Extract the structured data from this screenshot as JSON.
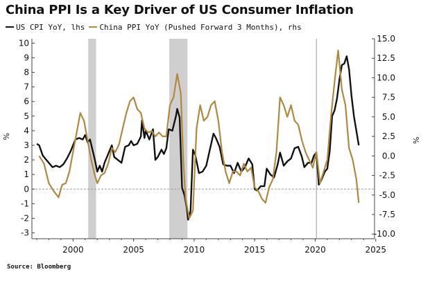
{
  "title": "China PPI Is a Key Driver of US Consumer Inflation",
  "source": "Source: Bloomberg",
  "chart_data": {
    "type": "line",
    "title": "China PPI Is a Key Driver of US Consumer Inflation",
    "x_range": [
      1996.6,
      2024.9
    ],
    "xticks": [
      2000,
      2005,
      2010,
      2015,
      2020,
      2025
    ],
    "left_axis": {
      "unit": "%",
      "ylim": [
        -3.4,
        10.3
      ],
      "ticks": [
        -3,
        -2,
        -1,
        0,
        1,
        2,
        3,
        4,
        5,
        6,
        7,
        8,
        9,
        10
      ]
    },
    "right_axis": {
      "unit": "%",
      "ylim": [
        -10.6,
        15.0
      ],
      "ticks": [
        -10.0,
        -7.5,
        -5.0,
        -2.5,
        0.0,
        2.5,
        5.0,
        7.5,
        10.0,
        12.5,
        15.0
      ]
    },
    "zero_line": 0,
    "shaded_periods": [
      [
        2001.25,
        2001.9
      ],
      [
        2007.95,
        2009.45
      ]
    ],
    "vertical_line": 2020.1,
    "legend_position": "top-left",
    "grid": false,
    "series": [
      {
        "name": "US CPI YoY, lhs",
        "axis": "left",
        "color": "#111111",
        "x": [
          1997.0,
          1997.2,
          1997.5,
          1997.8,
          1998.0,
          1998.3,
          1998.6,
          1998.9,
          1999.2,
          1999.5,
          1999.8,
          2000.0,
          2000.2,
          2000.5,
          2000.8,
          2001.0,
          2001.2,
          2001.4,
          2001.6,
          2001.8,
          2002.0,
          2002.2,
          2002.4,
          2002.6,
          2002.8,
          2003.0,
          2003.2,
          2003.4,
          2003.7,
          2004.0,
          2004.3,
          2004.6,
          2004.8,
          2005.0,
          2005.3,
          2005.6,
          2005.7,
          2005.9,
          2006.0,
          2006.3,
          2006.6,
          2006.8,
          2007.0,
          2007.3,
          2007.5,
          2007.7,
          2007.9,
          2008.2,
          2008.5,
          2008.6,
          2008.8,
          2009.0,
          2009.2,
          2009.4,
          2009.5,
          2009.7,
          2009.9,
          2010.1,
          2010.4,
          2010.7,
          2011.0,
          2011.3,
          2011.6,
          2011.8,
          2012.1,
          2012.4,
          2012.7,
          2013.0,
          2013.3,
          2013.6,
          2013.9,
          2014.2,
          2014.5,
          2014.8,
          2015.0,
          2015.2,
          2015.5,
          2015.8,
          2016.0,
          2016.3,
          2016.6,
          2016.9,
          2017.1,
          2017.4,
          2017.7,
          2018.0,
          2018.3,
          2018.6,
          2018.9,
          2019.1,
          2019.4,
          2019.7,
          2019.9,
          2020.1,
          2020.3,
          2020.5,
          2020.8,
          2021.0,
          2021.2,
          2021.4,
          2021.6,
          2021.8,
          2022.0,
          2022.2,
          2022.4,
          2022.6,
          2022.8,
          2023.0,
          2023.2,
          2023.4,
          2023.6
        ],
        "y": [
          3.1,
          3.0,
          2.3,
          2.0,
          1.8,
          1.5,
          1.6,
          1.5,
          1.7,
          2.1,
          2.6,
          3.0,
          3.4,
          3.5,
          3.4,
          3.7,
          3.2,
          3.4,
          2.7,
          2.0,
          1.2,
          1.6,
          1.2,
          1.8,
          2.2,
          2.6,
          3.0,
          2.2,
          2.0,
          1.8,
          2.9,
          3.0,
          3.3,
          3.0,
          3.1,
          3.6,
          4.7,
          3.5,
          4.0,
          3.4,
          4.1,
          2.0,
          2.2,
          2.7,
          2.4,
          2.8,
          4.1,
          4.0,
          5.0,
          5.5,
          4.9,
          0.1,
          -0.4,
          -1.3,
          -2.1,
          -1.5,
          2.7,
          2.3,
          1.1,
          1.2,
          1.6,
          2.7,
          3.8,
          3.5,
          2.9,
          1.7,
          1.6,
          1.6,
          1.1,
          1.8,
          1.2,
          1.5,
          2.1,
          1.7,
          0.0,
          -0.1,
          0.2,
          0.2,
          1.4,
          1.0,
          0.8,
          1.7,
          2.5,
          1.6,
          1.9,
          2.1,
          2.8,
          2.9,
          2.2,
          1.5,
          1.8,
          1.8,
          2.3,
          2.5,
          0.3,
          0.6,
          1.2,
          1.4,
          2.6,
          5.0,
          5.4,
          6.2,
          7.5,
          8.5,
          8.6,
          9.1,
          8.2,
          6.4,
          5.0,
          4.0,
          3.0
        ]
      },
      {
        "name": "China PPI YoY (Pushed Forward 3 Months), rhs",
        "axis": "right",
        "color": "#b08840",
        "x": [
          1997.2,
          1997.6,
          1998.0,
          1998.4,
          1998.8,
          1999.1,
          1999.4,
          1999.7,
          2000.0,
          2000.3,
          2000.6,
          2000.9,
          2001.2,
          2001.5,
          2001.8,
          2002.0,
          2002.3,
          2002.6,
          2002.9,
          2003.2,
          2003.5,
          2003.8,
          2004.1,
          2004.4,
          2004.7,
          2005.0,
          2005.3,
          2005.6,
          2005.9,
          2006.2,
          2006.5,
          2006.8,
          2007.1,
          2007.4,
          2007.7,
          2008.0,
          2008.3,
          2008.6,
          2008.9,
          2009.1,
          2009.3,
          2009.6,
          2009.9,
          2010.2,
          2010.5,
          2010.8,
          2011.1,
          2011.4,
          2011.7,
          2012.0,
          2012.3,
          2012.6,
          2012.9,
          2013.2,
          2013.5,
          2013.8,
          2014.1,
          2014.4,
          2014.7,
          2015.0,
          2015.3,
          2015.6,
          2015.9,
          2016.2,
          2016.5,
          2016.8,
          2017.1,
          2017.4,
          2017.7,
          2018.0,
          2018.3,
          2018.6,
          2018.9,
          2019.2,
          2019.5,
          2019.8,
          2020.1,
          2020.4,
          2020.7,
          2021.0,
          2021.3,
          2021.6,
          2021.9,
          2022.2,
          2022.5,
          2022.8,
          2023.1,
          2023.4,
          2023.6
        ],
        "y": [
          0.0,
          -1.0,
          -3.5,
          -4.5,
          -5.3,
          -3.7,
          -3.5,
          -2.0,
          0.5,
          3.0,
          5.5,
          4.5,
          2.0,
          -0.5,
          -2.5,
          -3.5,
          -2.5,
          -2.2,
          -1.0,
          1.0,
          0.5,
          1.5,
          3.5,
          5.5,
          7.0,
          7.5,
          6.0,
          5.5,
          3.5,
          3.0,
          3.2,
          2.5,
          3.0,
          2.5,
          2.5,
          6.5,
          7.5,
          10.5,
          8.0,
          -0.5,
          -5.5,
          -8.0,
          -7.0,
          3.5,
          6.5,
          4.5,
          5.0,
          6.5,
          7.0,
          4.5,
          0.5,
          -2.0,
          -3.5,
          -2.0,
          -2.0,
          -2.5,
          -1.0,
          -2.0,
          -1.5,
          -4.0,
          -4.5,
          -5.5,
          -6.0,
          -4.0,
          -3.0,
          0.5,
          7.5,
          6.5,
          5.0,
          6.5,
          4.5,
          4.0,
          2.0,
          0.5,
          -0.5,
          -1.5,
          0.5,
          -3.5,
          -2.0,
          -0.5,
          5.0,
          9.5,
          13.5,
          8.5,
          6.5,
          1.0,
          -0.5,
          -3.0,
          -6.0
        ]
      }
    ]
  }
}
